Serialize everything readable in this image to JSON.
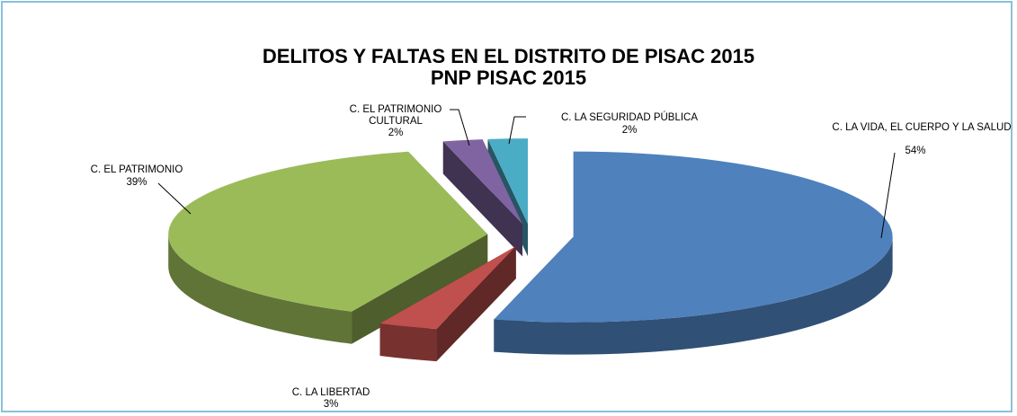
{
  "chart_data": {
    "type": "pie",
    "title": "DELITOS Y FALTAS EN EL DISTRITO DE PISAC 2015",
    "subtitle": "PNP PISAC 2015",
    "categories": [
      "C. LA VIDA, EL CUERPO Y LA SALUD",
      "C. LA LIBERTAD",
      "C. EL PATRIMONIO",
      "C. EL PATRIMONIO CULTURAL",
      "C. LA SEGURIDAD PÚBLICA"
    ],
    "values": [
      54,
      3,
      39,
      2,
      2
    ],
    "value_labels": [
      "54%",
      "3%",
      "39%",
      "2%",
      "2%"
    ],
    "colors": [
      "#4f81bd",
      "#c0504d",
      "#9bbb59",
      "#8064a2",
      "#4bacc6"
    ]
  }
}
